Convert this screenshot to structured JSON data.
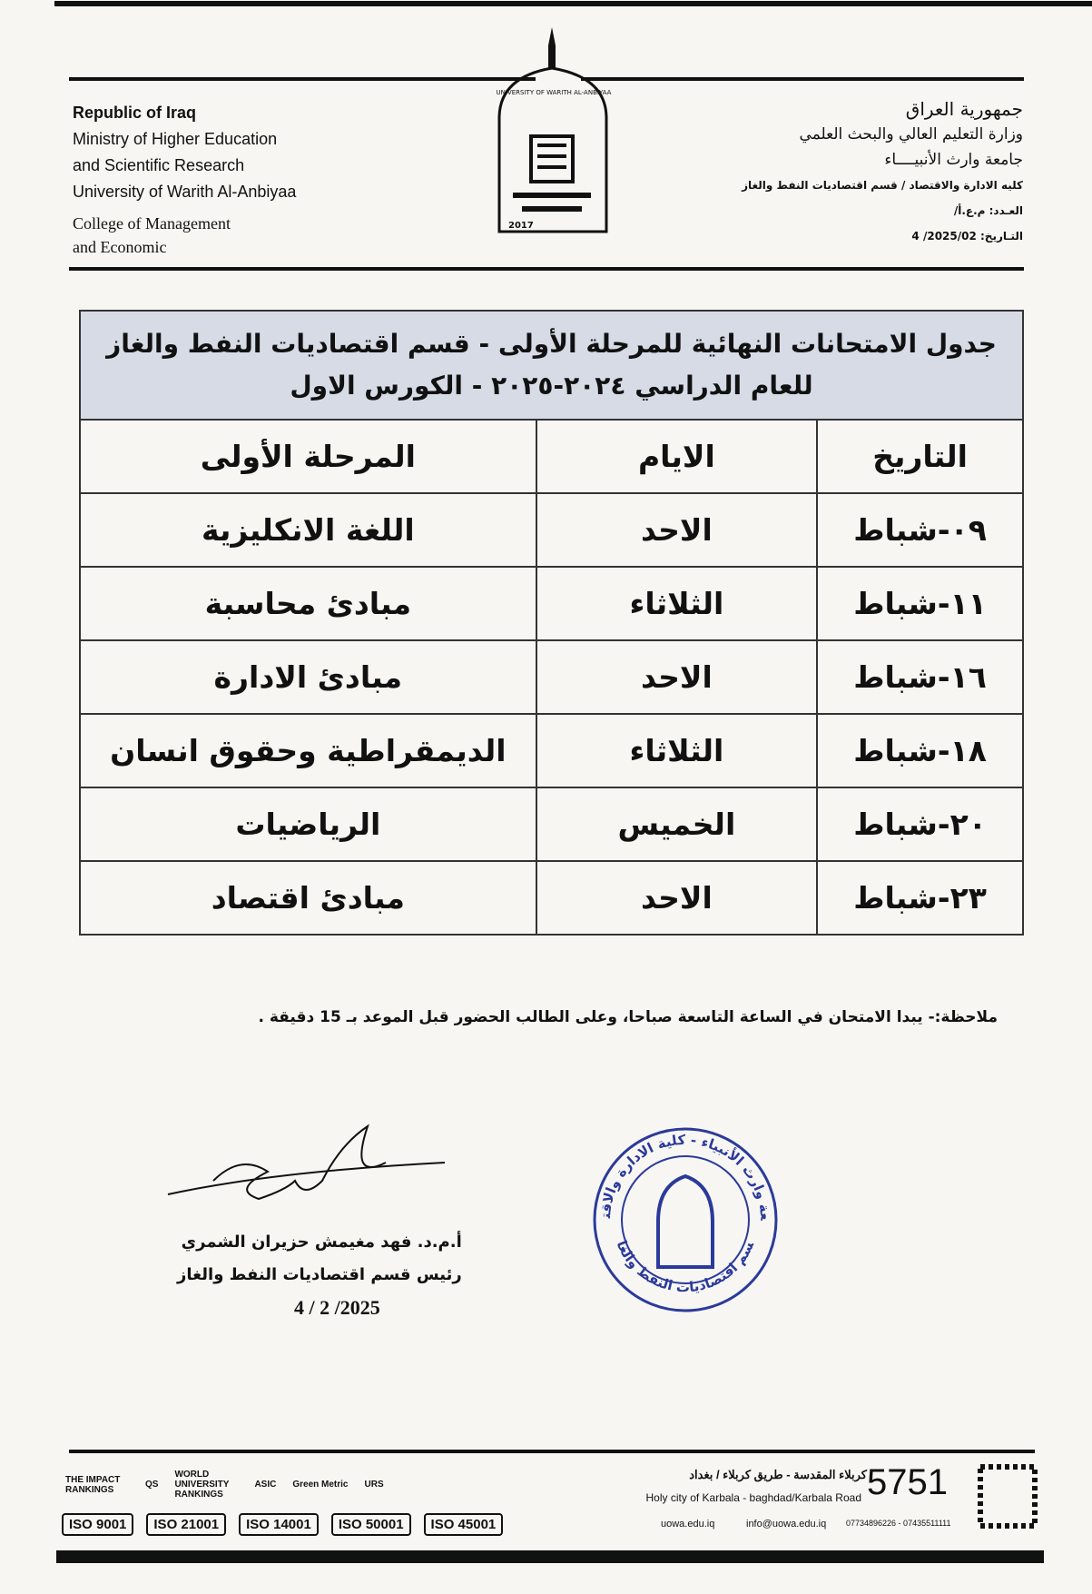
{
  "header": {
    "left": [
      "Republic of Iraq",
      "Ministry of Higher Education",
      "and Scientific Research",
      "University of Warith Al-Anbiyaa",
      "College of Management",
      "and Economic"
    ],
    "right": [
      "جمهورية العراق",
      "وزارة التعليم العالي والبحث العلمي",
      "جامعة وارث الأنبيــــاء",
      "كليه الادارة والاقتصاد / قسم اقتصاديات النفط والغاز",
      "العـدد: م.ع.أ/",
      "التـاريخ: 2025/02/ 4"
    ],
    "logo": {
      "ring": "UNIVERSITY OF WARITH AL-ANBIYAA",
      "year": "2017"
    }
  },
  "table": {
    "title": "جدول الامتحانات النهائية للمرحلة الأولى - قسم اقتصاديات النفط والغاز للعام الدراسي ٢٠٢٤-٢٠٢٥ - الكورس الاول",
    "columns": [
      "التاريخ",
      "الايام",
      "المرحلة الأولى"
    ],
    "rows": [
      [
        "٠٩-شباط",
        "الاحد",
        "اللغة الانكليزية"
      ],
      [
        "١١-شباط",
        "الثلاثاء",
        "مبادئ محاسبة"
      ],
      [
        "١٦-شباط",
        "الاحد",
        "مبادئ الادارة"
      ],
      [
        "١٨-شباط",
        "الثلاثاء",
        "الديمقراطية وحقوق انسان"
      ],
      [
        "٢٠-شباط",
        "الخميس",
        "الرياضيات"
      ],
      [
        "٢٣-شباط",
        "الاحد",
        "مبادئ اقتصاد"
      ]
    ]
  },
  "note": "ملاحظة:- يبدا الامتحان في الساعة التاسعة صباحا، وعلى الطالب الحضور قبل الموعد بـ 15 دقيقة .",
  "signature": {
    "name": "أ.م.د. فهد مغيمش حزيران الشمري",
    "position": "رئيس قسم اقتصاديات النفط والغاز",
    "date": "2025/ 2 / 4"
  },
  "stamp": {
    "top": "جامعة وارث الأنبياء - كلية الادارة والاقتصاد",
    "bottom": "قسم اقتصاديات النفط والغاز"
  },
  "footer": {
    "address": "كربلاء المقدسة - طريق كربلاء / بغداد",
    "address_en": "Holy city of Karbala - baghdad/Karbala Road",
    "hotline": "5751",
    "website": "uowa.edu.iq",
    "email": "info@uowa.edu.iq",
    "phones": "07734896226 - 07435511111",
    "badges": [
      "THE IMPACT RANKINGS",
      "QS",
      "WORLD UNIVERSITY RANKINGS",
      "ASIC",
      "Green Metric",
      "URS"
    ],
    "iso": [
      "ISO 9001",
      "ISO 21001",
      "ISO 14001",
      "ISO 50001",
      "ISO 45001"
    ]
  }
}
